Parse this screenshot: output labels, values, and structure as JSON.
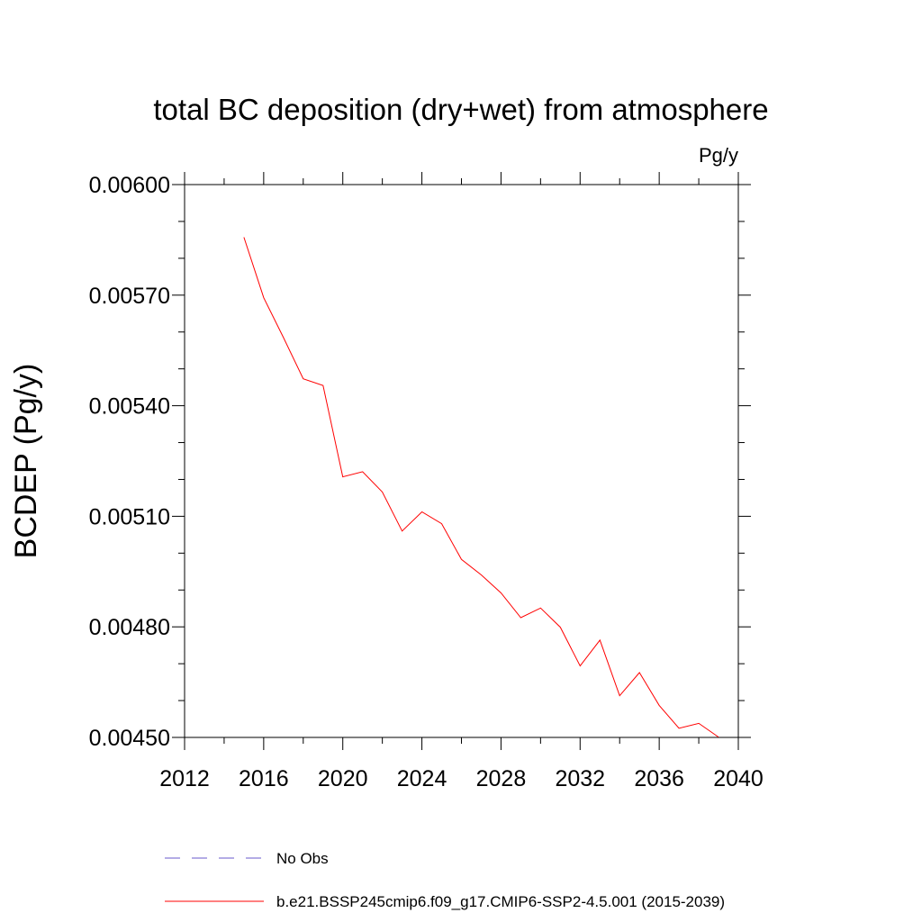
{
  "chart_data": {
    "type": "line",
    "title": "total BC deposition (dry+wet) from atmosphere",
    "units": "Pg/y",
    "xlabel": "",
    "ylabel": "BCDEP  (Pg/y)",
    "xlim": [
      2012,
      2040
    ],
    "ylim": [
      0.0045,
      0.006
    ],
    "x_ticks": [
      2012,
      2016,
      2020,
      2024,
      2028,
      2032,
      2036,
      2040
    ],
    "x_tick_labels": [
      "2012",
      "2016",
      "2020",
      "2024",
      "2028",
      "2032",
      "2036",
      "2040"
    ],
    "y_ticks": [
      0.0045,
      0.0048,
      0.0051,
      0.0054,
      0.0057,
      0.006
    ],
    "y_tick_labels": [
      "0.00450",
      "0.00480",
      "0.00510",
      "0.00540",
      "0.00570",
      "0.00600"
    ],
    "grid": false,
    "legend_position": "bottom",
    "legend": [
      {
        "label": "No Obs",
        "color": "#6a5acd",
        "style": "dashed"
      },
      {
        "label": "b.e21.BSSP245cmip6.f09_g17.CMIP6-SSP2-4.5.001 (2015-2039)",
        "color": "#ff0000",
        "style": "solid"
      }
    ],
    "series": [
      {
        "color": "#ff0000",
        "x": [
          2015,
          2016,
          2017,
          2018,
          2019,
          2020,
          2021,
          2022,
          2023,
          2024,
          2025,
          2026,
          2027,
          2028,
          2029,
          2030,
          2031,
          2032,
          2033,
          2034,
          2035,
          2036,
          2037,
          2038,
          2039
        ],
        "values": [
          0.005857,
          0.005693,
          0.005585,
          0.005473,
          0.005455,
          0.005207,
          0.005221,
          0.005166,
          0.00506,
          0.005112,
          0.00508,
          0.004983,
          0.004941,
          0.004892,
          0.004825,
          0.004851,
          0.004799,
          0.004694,
          0.004764,
          0.004613,
          0.004676,
          0.004587,
          0.004525,
          0.004538,
          0.004501
        ]
      }
    ]
  }
}
